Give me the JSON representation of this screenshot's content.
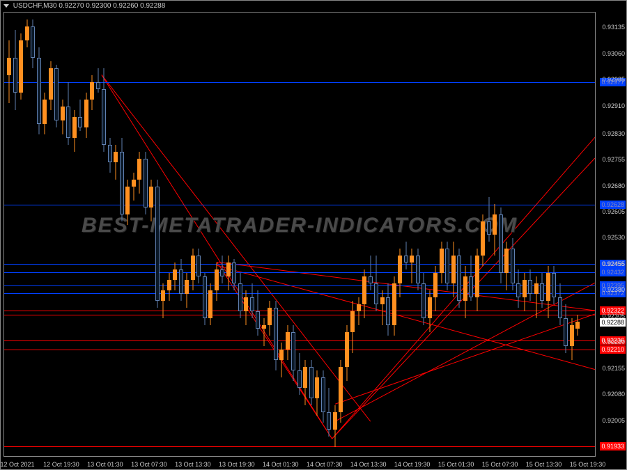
{
  "header": {
    "symbol": "USDCHF,M30",
    "ohlc": "0.92270 0.92300 0.92260 0.92288"
  },
  "watermark": "BEST-METATRADER-INDICATORS.COM",
  "chart": {
    "type": "candlestick",
    "background_color": "#000000",
    "border_color": "#888888",
    "text_color": "#cccccc",
    "bull_color": "#ff9020",
    "bear_color": "#6080b0",
    "bear_fill": "#0a1828",
    "ymin": 0.919,
    "ymax": 0.9318,
    "y_ticks": [
      0.93135,
      0.9306,
      0.92985,
      0.9291,
      0.9283,
      0.92755,
      0.9268,
      0.92605,
      0.9253,
      0.92455,
      0.9238,
      0.92305,
      0.9223,
      0.92155,
      0.9208,
      0.92005
    ],
    "x_labels": [
      "12 Oct 2021",
      "12 Oct 19:30",
      "13 Oct 01:30",
      "13 Oct 07:30",
      "13 Oct 13:30",
      "13 Oct 19:30",
      "14 Oct 01:30",
      "14 Oct 07:30",
      "14 Oct 13:30",
      "14 Oct 19:30",
      "15 Oct 01:30",
      "15 Oct 07:30",
      "15 Oct 13:30",
      "15 Oct 19:30"
    ],
    "blue_h_lines": [
      {
        "y": 0.9298,
        "label": "0.92977"
      },
      {
        "y": 0.92628,
        "label": "0.92628"
      },
      {
        "y": 0.92456,
        "label": "0.92456"
      },
      {
        "y": 0.92432,
        "label": "0.92432"
      },
      {
        "y": 0.92395,
        "label": "0.92395"
      },
      {
        "y": 0.92372,
        "label": "0.92372"
      }
    ],
    "red_h_lines": [
      {
        "y": 0.92322,
        "label": "0.92322"
      },
      {
        "y": 0.9231,
        "label": ""
      },
      {
        "y": 0.92236,
        "label": "0.92236"
      },
      {
        "y": 0.9221,
        "label": "0.92210"
      },
      {
        "y": 0.91933,
        "label": "0.91933"
      }
    ],
    "current_price": {
      "y": 0.92288,
      "label": "0.92288"
    },
    "red_diag_lines": [
      {
        "x1": 0.165,
        "y1": 0.93,
        "x2": 0.555,
        "y2": 0.9195
      },
      {
        "x1": 0.165,
        "y1": 0.93,
        "x2": 0.62,
        "y2": 0.92
      },
      {
        "x1": 0.555,
        "y1": 0.9195,
        "x2": 0.36,
        "y2": 0.9246
      },
      {
        "x1": 0.555,
        "y1": 0.9195,
        "x2": 1.0,
        "y2": 0.9282
      },
      {
        "x1": 0.555,
        "y1": 0.9195,
        "x2": 1.0,
        "y2": 0.9276
      },
      {
        "x1": 0.36,
        "y1": 0.9246,
        "x2": 1.0,
        "y2": 0.9232
      },
      {
        "x1": 0.36,
        "y1": 0.9245,
        "x2": 1.0,
        "y2": 0.9215
      },
      {
        "x1": 0.56,
        "y1": 0.9205,
        "x2": 1.0,
        "y2": 0.9231
      },
      {
        "x1": 0.56,
        "y1": 0.92,
        "x2": 1.0,
        "y2": 0.924
      }
    ],
    "candles": [
      {
        "x": 0.005,
        "o": 0.93,
        "h": 0.931,
        "l": 0.9292,
        "c": 0.9305,
        "d": "u"
      },
      {
        "x": 0.015,
        "o": 0.9305,
        "h": 0.9313,
        "l": 0.929,
        "c": 0.9295,
        "d": "d"
      },
      {
        "x": 0.025,
        "o": 0.9295,
        "h": 0.9312,
        "l": 0.9293,
        "c": 0.931,
        "d": "u"
      },
      {
        "x": 0.035,
        "o": 0.931,
        "h": 0.9316,
        "l": 0.9308,
        "c": 0.9314,
        "d": "u"
      },
      {
        "x": 0.045,
        "o": 0.9314,
        "h": 0.9316,
        "l": 0.9302,
        "c": 0.9305,
        "d": "d"
      },
      {
        "x": 0.055,
        "o": 0.9305,
        "h": 0.9308,
        "l": 0.9283,
        "c": 0.9286,
        "d": "d"
      },
      {
        "x": 0.065,
        "o": 0.9286,
        "h": 0.9295,
        "l": 0.9283,
        "c": 0.9293,
        "d": "u"
      },
      {
        "x": 0.075,
        "o": 0.9293,
        "h": 0.9304,
        "l": 0.929,
        "c": 0.9302,
        "d": "u"
      },
      {
        "x": 0.085,
        "o": 0.9302,
        "h": 0.9303,
        "l": 0.9285,
        "c": 0.9287,
        "d": "d"
      },
      {
        "x": 0.095,
        "o": 0.9287,
        "h": 0.9293,
        "l": 0.9283,
        "c": 0.9291,
        "d": "u"
      },
      {
        "x": 0.105,
        "o": 0.9291,
        "h": 0.9298,
        "l": 0.928,
        "c": 0.9282,
        "d": "d"
      },
      {
        "x": 0.115,
        "o": 0.9282,
        "h": 0.929,
        "l": 0.9278,
        "c": 0.9288,
        "d": "u"
      },
      {
        "x": 0.125,
        "o": 0.9288,
        "h": 0.9293,
        "l": 0.9284,
        "c": 0.9285,
        "d": "d"
      },
      {
        "x": 0.135,
        "o": 0.9285,
        "h": 0.9295,
        "l": 0.9282,
        "c": 0.9293,
        "d": "u"
      },
      {
        "x": 0.145,
        "o": 0.9293,
        "h": 0.93,
        "l": 0.929,
        "c": 0.9298,
        "d": "u"
      },
      {
        "x": 0.155,
        "o": 0.9298,
        "h": 0.9302,
        "l": 0.9295,
        "c": 0.9296,
        "d": "d"
      },
      {
        "x": 0.165,
        "o": 0.9296,
        "h": 0.9302,
        "l": 0.9278,
        "c": 0.928,
        "d": "d"
      },
      {
        "x": 0.175,
        "o": 0.928,
        "h": 0.9282,
        "l": 0.9272,
        "c": 0.9275,
        "d": "d"
      },
      {
        "x": 0.185,
        "o": 0.9275,
        "h": 0.928,
        "l": 0.927,
        "c": 0.9278,
        "d": "u"
      },
      {
        "x": 0.195,
        "o": 0.9278,
        "h": 0.9282,
        "l": 0.9258,
        "c": 0.926,
        "d": "d"
      },
      {
        "x": 0.205,
        "o": 0.926,
        "h": 0.927,
        "l": 0.9257,
        "c": 0.9268,
        "d": "u"
      },
      {
        "x": 0.215,
        "o": 0.9268,
        "h": 0.9272,
        "l": 0.9264,
        "c": 0.927,
        "d": "u"
      },
      {
        "x": 0.225,
        "o": 0.927,
        "h": 0.9278,
        "l": 0.9266,
        "c": 0.9276,
        "d": "u"
      },
      {
        "x": 0.235,
        "o": 0.9276,
        "h": 0.9278,
        "l": 0.926,
        "c": 0.9262,
        "d": "d"
      },
      {
        "x": 0.245,
        "o": 0.9262,
        "h": 0.927,
        "l": 0.9258,
        "c": 0.9268,
        "d": "u"
      },
      {
        "x": 0.255,
        "o": 0.9268,
        "h": 0.927,
        "l": 0.9233,
        "c": 0.9235,
        "d": "d"
      },
      {
        "x": 0.265,
        "o": 0.9235,
        "h": 0.924,
        "l": 0.923,
        "c": 0.9238,
        "d": "u"
      },
      {
        "x": 0.275,
        "o": 0.9238,
        "h": 0.9243,
        "l": 0.9235,
        "c": 0.9241,
        "d": "u"
      },
      {
        "x": 0.285,
        "o": 0.9241,
        "h": 0.9246,
        "l": 0.9238,
        "c": 0.9244,
        "d": "u"
      },
      {
        "x": 0.295,
        "o": 0.9244,
        "h": 0.9247,
        "l": 0.9235,
        "c": 0.9237,
        "d": "d"
      },
      {
        "x": 0.305,
        "o": 0.9237,
        "h": 0.9243,
        "l": 0.9233,
        "c": 0.9241,
        "d": "u"
      },
      {
        "x": 0.315,
        "o": 0.9241,
        "h": 0.925,
        "l": 0.9238,
        "c": 0.9248,
        "d": "u"
      },
      {
        "x": 0.325,
        "o": 0.9248,
        "h": 0.925,
        "l": 0.924,
        "c": 0.9242,
        "d": "d"
      },
      {
        "x": 0.335,
        "o": 0.9242,
        "h": 0.9243,
        "l": 0.9228,
        "c": 0.923,
        "d": "d"
      },
      {
        "x": 0.345,
        "o": 0.923,
        "h": 0.924,
        "l": 0.9228,
        "c": 0.9238,
        "d": "u"
      },
      {
        "x": 0.355,
        "o": 0.9238,
        "h": 0.9246,
        "l": 0.9235,
        "c": 0.9244,
        "d": "u"
      },
      {
        "x": 0.365,
        "o": 0.9244,
        "h": 0.9248,
        "l": 0.924,
        "c": 0.9242,
        "d": "d"
      },
      {
        "x": 0.375,
        "o": 0.9242,
        "h": 0.9248,
        "l": 0.9238,
        "c": 0.9246,
        "d": "u"
      },
      {
        "x": 0.385,
        "o": 0.9246,
        "h": 0.9247,
        "l": 0.9238,
        "c": 0.924,
        "d": "d"
      },
      {
        "x": 0.395,
        "o": 0.924,
        "h": 0.9243,
        "l": 0.923,
        "c": 0.9232,
        "d": "d"
      },
      {
        "x": 0.405,
        "o": 0.9232,
        "h": 0.9238,
        "l": 0.9228,
        "c": 0.9236,
        "d": "u"
      },
      {
        "x": 0.415,
        "o": 0.9236,
        "h": 0.924,
        "l": 0.923,
        "c": 0.9232,
        "d": "d"
      },
      {
        "x": 0.425,
        "o": 0.9232,
        "h": 0.9238,
        "l": 0.9225,
        "c": 0.9227,
        "d": "d"
      },
      {
        "x": 0.435,
        "o": 0.9227,
        "h": 0.923,
        "l": 0.9222,
        "c": 0.9228,
        "d": "u"
      },
      {
        "x": 0.445,
        "o": 0.9228,
        "h": 0.9235,
        "l": 0.9225,
        "c": 0.9233,
        "d": "u"
      },
      {
        "x": 0.455,
        "o": 0.9233,
        "h": 0.9235,
        "l": 0.9215,
        "c": 0.9218,
        "d": "d"
      },
      {
        "x": 0.465,
        "o": 0.9218,
        "h": 0.9223,
        "l": 0.9213,
        "c": 0.9221,
        "d": "u"
      },
      {
        "x": 0.475,
        "o": 0.9221,
        "h": 0.9228,
        "l": 0.9218,
        "c": 0.9226,
        "d": "u"
      },
      {
        "x": 0.485,
        "o": 0.9226,
        "h": 0.9228,
        "l": 0.9212,
        "c": 0.9215,
        "d": "d"
      },
      {
        "x": 0.495,
        "o": 0.9215,
        "h": 0.922,
        "l": 0.9208,
        "c": 0.921,
        "d": "d"
      },
      {
        "x": 0.505,
        "o": 0.921,
        "h": 0.9218,
        "l": 0.9205,
        "c": 0.9216,
        "d": "u"
      },
      {
        "x": 0.515,
        "o": 0.9216,
        "h": 0.9218,
        "l": 0.9205,
        "c": 0.9207,
        "d": "d"
      },
      {
        "x": 0.525,
        "o": 0.9207,
        "h": 0.9215,
        "l": 0.9202,
        "c": 0.9213,
        "d": "u"
      },
      {
        "x": 0.535,
        "o": 0.9213,
        "h": 0.9215,
        "l": 0.92,
        "c": 0.9203,
        "d": "d"
      },
      {
        "x": 0.545,
        "o": 0.9203,
        "h": 0.921,
        "l": 0.9196,
        "c": 0.9198,
        "d": "d"
      },
      {
        "x": 0.555,
        "o": 0.9198,
        "h": 0.9205,
        "l": 0.9193,
        "c": 0.9203,
        "d": "u"
      },
      {
        "x": 0.565,
        "o": 0.9203,
        "h": 0.9218,
        "l": 0.92,
        "c": 0.9216,
        "d": "u"
      },
      {
        "x": 0.575,
        "o": 0.9216,
        "h": 0.9228,
        "l": 0.9212,
        "c": 0.9226,
        "d": "u"
      },
      {
        "x": 0.585,
        "o": 0.9226,
        "h": 0.9235,
        "l": 0.922,
        "c": 0.9232,
        "d": "u"
      },
      {
        "x": 0.595,
        "o": 0.9232,
        "h": 0.9236,
        "l": 0.9228,
        "c": 0.9234,
        "d": "u"
      },
      {
        "x": 0.605,
        "o": 0.9234,
        "h": 0.9244,
        "l": 0.923,
        "c": 0.9242,
        "d": "u"
      },
      {
        "x": 0.615,
        "o": 0.9242,
        "h": 0.9248,
        "l": 0.9238,
        "c": 0.924,
        "d": "d"
      },
      {
        "x": 0.625,
        "o": 0.924,
        "h": 0.9248,
        "l": 0.9232,
        "c": 0.9234,
        "d": "d"
      },
      {
        "x": 0.635,
        "o": 0.9234,
        "h": 0.9238,
        "l": 0.9228,
        "c": 0.9236,
        "d": "u"
      },
      {
        "x": 0.645,
        "o": 0.9236,
        "h": 0.924,
        "l": 0.9225,
        "c": 0.9228,
        "d": "d"
      },
      {
        "x": 0.655,
        "o": 0.9228,
        "h": 0.9242,
        "l": 0.9225,
        "c": 0.924,
        "d": "u"
      },
      {
        "x": 0.665,
        "o": 0.924,
        "h": 0.925,
        "l": 0.9236,
        "c": 0.9248,
        "d": "u"
      },
      {
        "x": 0.675,
        "o": 0.9248,
        "h": 0.9252,
        "l": 0.9244,
        "c": 0.9246,
        "d": "d"
      },
      {
        "x": 0.685,
        "o": 0.9246,
        "h": 0.925,
        "l": 0.924,
        "c": 0.9248,
        "d": "u"
      },
      {
        "x": 0.695,
        "o": 0.9248,
        "h": 0.925,
        "l": 0.9238,
        "c": 0.924,
        "d": "d"
      },
      {
        "x": 0.705,
        "o": 0.924,
        "h": 0.9243,
        "l": 0.9228,
        "c": 0.923,
        "d": "d"
      },
      {
        "x": 0.715,
        "o": 0.923,
        "h": 0.9238,
        "l": 0.9226,
        "c": 0.9236,
        "d": "u"
      },
      {
        "x": 0.725,
        "o": 0.9236,
        "h": 0.9245,
        "l": 0.9232,
        "c": 0.9243,
        "d": "u"
      },
      {
        "x": 0.735,
        "o": 0.9243,
        "h": 0.9252,
        "l": 0.924,
        "c": 0.925,
        "d": "u"
      },
      {
        "x": 0.745,
        "o": 0.925,
        "h": 0.9252,
        "l": 0.9238,
        "c": 0.924,
        "d": "d"
      },
      {
        "x": 0.755,
        "o": 0.924,
        "h": 0.9252,
        "l": 0.9236,
        "c": 0.9248,
        "d": "u"
      },
      {
        "x": 0.765,
        "o": 0.9248,
        "h": 0.925,
        "l": 0.9233,
        "c": 0.9235,
        "d": "d"
      },
      {
        "x": 0.775,
        "o": 0.9235,
        "h": 0.9245,
        "l": 0.923,
        "c": 0.9242,
        "d": "u"
      },
      {
        "x": 0.785,
        "o": 0.9242,
        "h": 0.9248,
        "l": 0.9235,
        "c": 0.9236,
        "d": "d"
      },
      {
        "x": 0.795,
        "o": 0.9236,
        "h": 0.925,
        "l": 0.9232,
        "c": 0.9248,
        "d": "u"
      },
      {
        "x": 0.805,
        "o": 0.9248,
        "h": 0.926,
        "l": 0.9245,
        "c": 0.9258,
        "d": "u"
      },
      {
        "x": 0.815,
        "o": 0.9258,
        "h": 0.9265,
        "l": 0.9252,
        "c": 0.9254,
        "d": "d"
      },
      {
        "x": 0.825,
        "o": 0.9254,
        "h": 0.9263,
        "l": 0.9248,
        "c": 0.926,
        "d": "u"
      },
      {
        "x": 0.835,
        "o": 0.926,
        "h": 0.9262,
        "l": 0.924,
        "c": 0.9243,
        "d": "d"
      },
      {
        "x": 0.845,
        "o": 0.9243,
        "h": 0.9252,
        "l": 0.9238,
        "c": 0.925,
        "d": "u"
      },
      {
        "x": 0.855,
        "o": 0.925,
        "h": 0.9253,
        "l": 0.9238,
        "c": 0.924,
        "d": "d"
      },
      {
        "x": 0.865,
        "o": 0.924,
        "h": 0.9244,
        "l": 0.9233,
        "c": 0.9236,
        "d": "d"
      },
      {
        "x": 0.875,
        "o": 0.9236,
        "h": 0.9243,
        "l": 0.9232,
        "c": 0.9241,
        "d": "u"
      },
      {
        "x": 0.885,
        "o": 0.9241,
        "h": 0.9244,
        "l": 0.9235,
        "c": 0.9237,
        "d": "d"
      },
      {
        "x": 0.895,
        "o": 0.9237,
        "h": 0.9242,
        "l": 0.923,
        "c": 0.924,
        "d": "u"
      },
      {
        "x": 0.905,
        "o": 0.924,
        "h": 0.9243,
        "l": 0.9233,
        "c": 0.9235,
        "d": "d"
      },
      {
        "x": 0.915,
        "o": 0.9235,
        "h": 0.9245,
        "l": 0.923,
        "c": 0.9243,
        "d": "u"
      },
      {
        "x": 0.925,
        "o": 0.9243,
        "h": 0.9245,
        "l": 0.9234,
        "c": 0.9236,
        "d": "d"
      },
      {
        "x": 0.935,
        "o": 0.9236,
        "h": 0.924,
        "l": 0.9228,
        "c": 0.923,
        "d": "d"
      },
      {
        "x": 0.945,
        "o": 0.923,
        "h": 0.9234,
        "l": 0.922,
        "c": 0.9222,
        "d": "d"
      },
      {
        "x": 0.955,
        "o": 0.9222,
        "h": 0.923,
        "l": 0.9218,
        "c": 0.9228,
        "d": "u"
      },
      {
        "x": 0.965,
        "o": 0.9227,
        "h": 0.9231,
        "l": 0.9225,
        "c": 0.9229,
        "d": "u"
      }
    ]
  }
}
